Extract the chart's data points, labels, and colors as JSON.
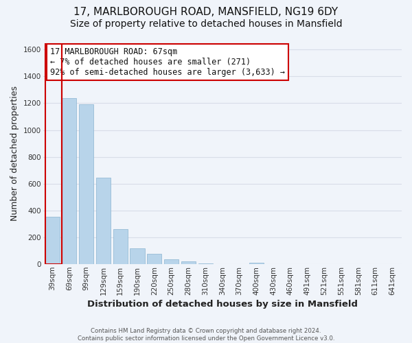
{
  "title": "17, MARLBOROUGH ROAD, MANSFIELD, NG19 6DY",
  "subtitle": "Size of property relative to detached houses in Mansfield",
  "xlabel": "Distribution of detached houses by size in Mansfield",
  "ylabel": "Number of detached properties",
  "categories": [
    "39sqm",
    "69sqm",
    "99sqm",
    "129sqm",
    "159sqm",
    "190sqm",
    "220sqm",
    "250sqm",
    "280sqm",
    "310sqm",
    "340sqm",
    "370sqm",
    "400sqm",
    "430sqm",
    "460sqm",
    "491sqm",
    "521sqm",
    "551sqm",
    "581sqm",
    "611sqm",
    "641sqm"
  ],
  "values": [
    355,
    1240,
    1190,
    645,
    260,
    120,
    75,
    38,
    20,
    8,
    0,
    0,
    13,
    0,
    0,
    0,
    0,
    0,
    0,
    0,
    0
  ],
  "bar_color": "#b8d4ea",
  "highlight_color": "#cc0000",
  "ylim": [
    0,
    1650
  ],
  "yticks": [
    0,
    200,
    400,
    600,
    800,
    1000,
    1200,
    1400,
    1600
  ],
  "annotation_title": "17 MARLBOROUGH ROAD: 67sqm",
  "annotation_line1": "← 7% of detached houses are smaller (271)",
  "annotation_line2": "92% of semi-detached houses are larger (3,633) →",
  "annotation_box_color": "#ffffff",
  "annotation_box_edge": "#cc0000",
  "footer1": "Contains HM Land Registry data © Crown copyright and database right 2024.",
  "footer2": "Contains public sector information licensed under the Open Government Licence v3.0.",
  "background_color": "#f0f4fa",
  "plot_background": "#f0f4fa",
  "grid_color": "#d8dde8",
  "title_fontsize": 11,
  "subtitle_fontsize": 10,
  "tick_fontsize": 7.5,
  "ylabel_fontsize": 9,
  "xlabel_fontsize": 9.5
}
